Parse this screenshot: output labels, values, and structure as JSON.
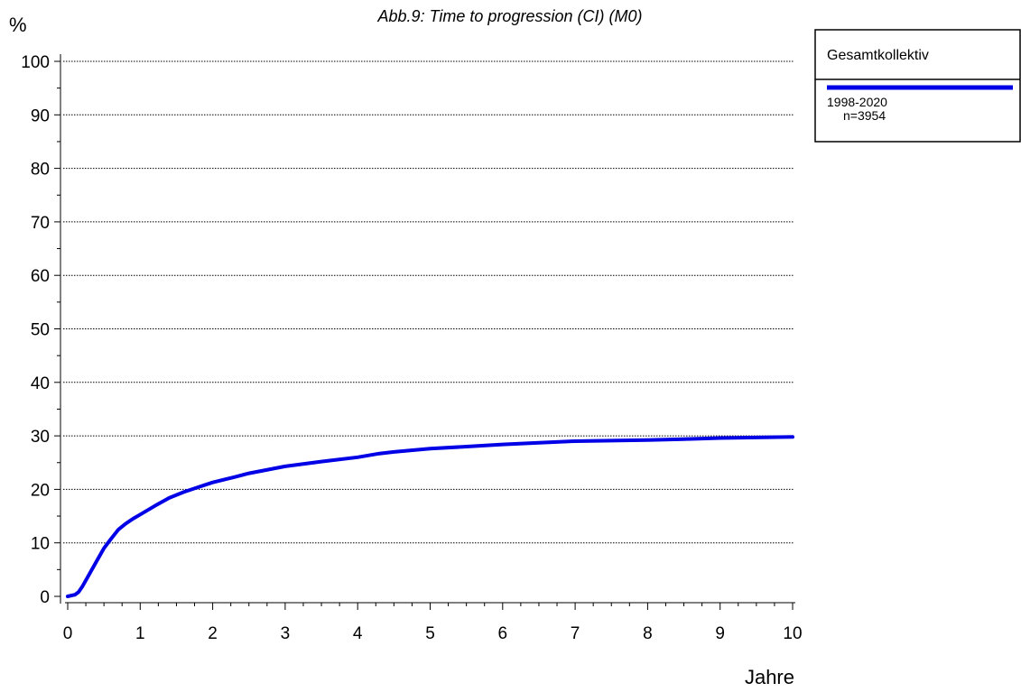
{
  "chart_data": {
    "type": "line",
    "title": "Abb.9: Time to progression (CI) (M0)",
    "ylabel": "%",
    "xlabel": "Jahre",
    "xlim": [
      0,
      10
    ],
    "ylim": [
      0,
      100
    ],
    "x_ticks": [
      "0",
      "1",
      "2",
      "3",
      "4",
      "5",
      "6",
      "7",
      "8",
      "9",
      "10"
    ],
    "y_ticks": [
      "0",
      "10",
      "20",
      "30",
      "40",
      "50",
      "60",
      "70",
      "80",
      "90",
      "100"
    ],
    "grid": "horizontal dotted",
    "legend": {
      "title": "Gesamtkollektiv",
      "placement": "top-right outside",
      "entries": [
        {
          "label": "1998-2020",
          "sublabel": "n=3954",
          "color": "#0000e6"
        }
      ]
    },
    "series": [
      {
        "name": "1998-2020",
        "color": "#0000e6",
        "x": [
          0,
          0.1,
          0.15,
          0.2,
          0.3,
          0.4,
          0.5,
          0.6,
          0.7,
          0.8,
          0.9,
          1.0,
          1.2,
          1.4,
          1.6,
          1.8,
          2.0,
          2.3,
          2.5,
          3.0,
          3.5,
          4.0,
          4.3,
          4.5,
          5.0,
          5.5,
          6.0,
          6.5,
          7.0,
          8.0,
          8.5,
          9.0,
          9.5,
          10.0
        ],
        "y": [
          0,
          0.3,
          0.8,
          1.8,
          4.2,
          6.6,
          9.0,
          10.8,
          12.5,
          13.6,
          14.5,
          15.3,
          16.9,
          18.4,
          19.5,
          20.4,
          21.3,
          22.3,
          23.0,
          24.3,
          25.2,
          26.0,
          26.7,
          27.0,
          27.6,
          28.0,
          28.4,
          28.7,
          29.0,
          29.2,
          29.4,
          29.6,
          29.7,
          29.8
        ]
      }
    ]
  }
}
